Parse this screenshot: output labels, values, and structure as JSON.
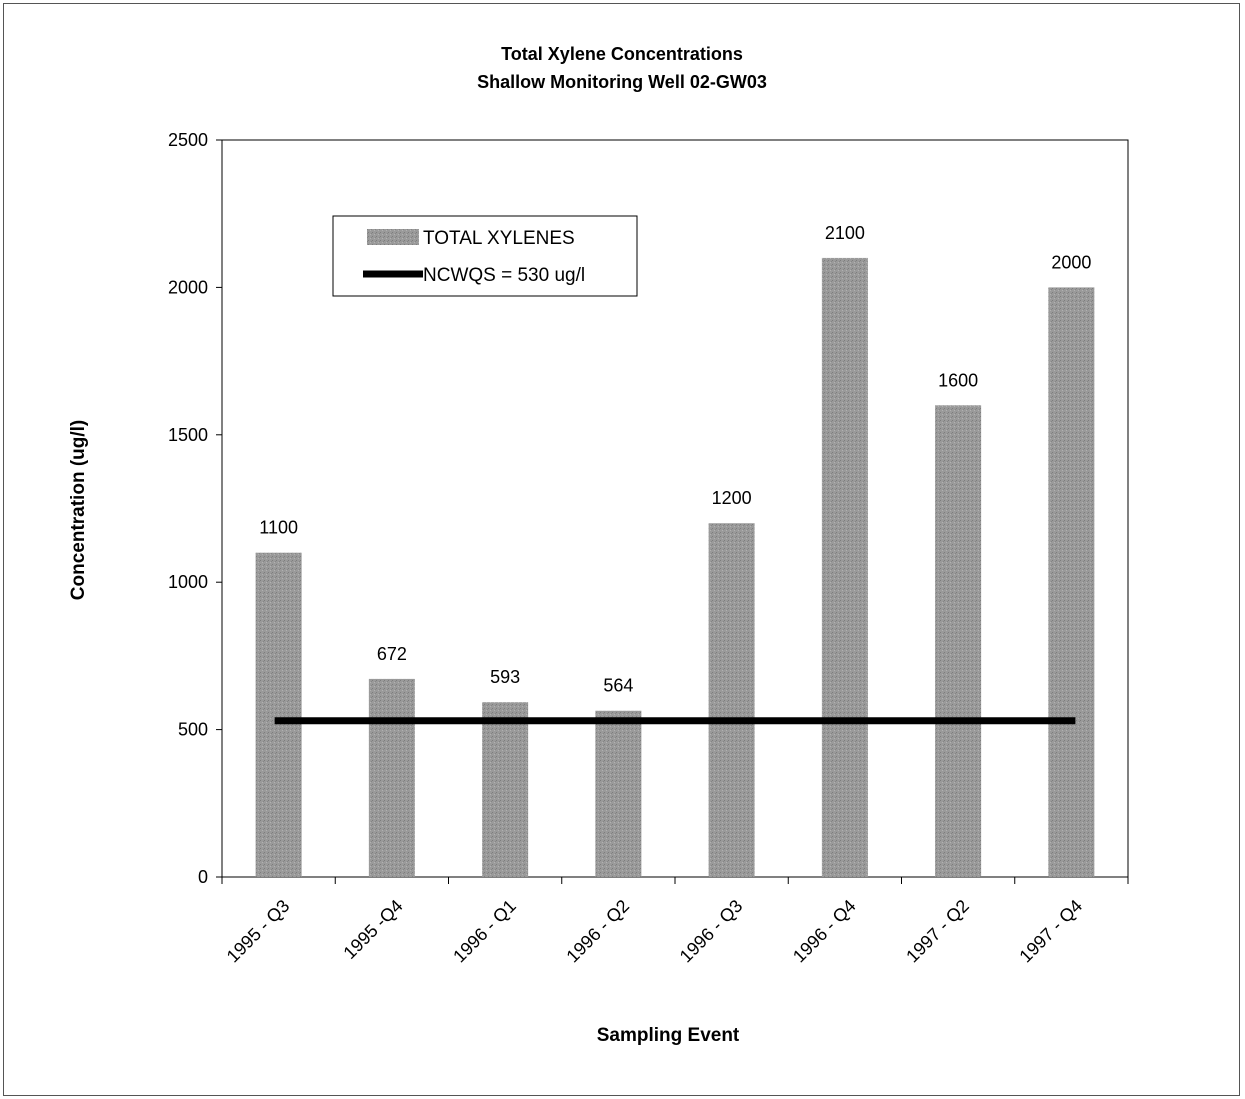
{
  "chart_data": {
    "type": "bar",
    "title": "Total Xylene Concentrations",
    "subtitle": "Shallow Monitoring Well 02-GW03",
    "xlabel": "Sampling Event",
    "ylabel": "Concentration (ug/l)",
    "categories": [
      "1995 - Q3",
      "1995 -Q4",
      "1996 - Q1",
      "1996 - Q2",
      "1996 - Q3",
      "1996 - Q4",
      "1997 - Q2",
      "1997 - Q4"
    ],
    "series": [
      {
        "name": "TOTAL XYLENES",
        "values": [
          1100,
          672,
          593,
          564,
          1200,
          2100,
          1600,
          2000
        ],
        "color": "#9a9a9a"
      }
    ],
    "reference_line": {
      "name": "NCWQS = 530 ug/l",
      "value": 530,
      "color": "#000000"
    },
    "data_labels": [
      "1100",
      "672",
      "593",
      "564",
      "1200",
      "2100",
      "1600",
      "2000"
    ],
    "ylim": [
      0,
      2500
    ],
    "yticks": [
      0,
      500,
      1000,
      1500,
      2000,
      2500
    ],
    "ytick_labels": [
      "0",
      "500",
      "1000",
      "1500",
      "2000",
      "2500"
    ],
    "grid": false,
    "legend_position": "top-left"
  }
}
